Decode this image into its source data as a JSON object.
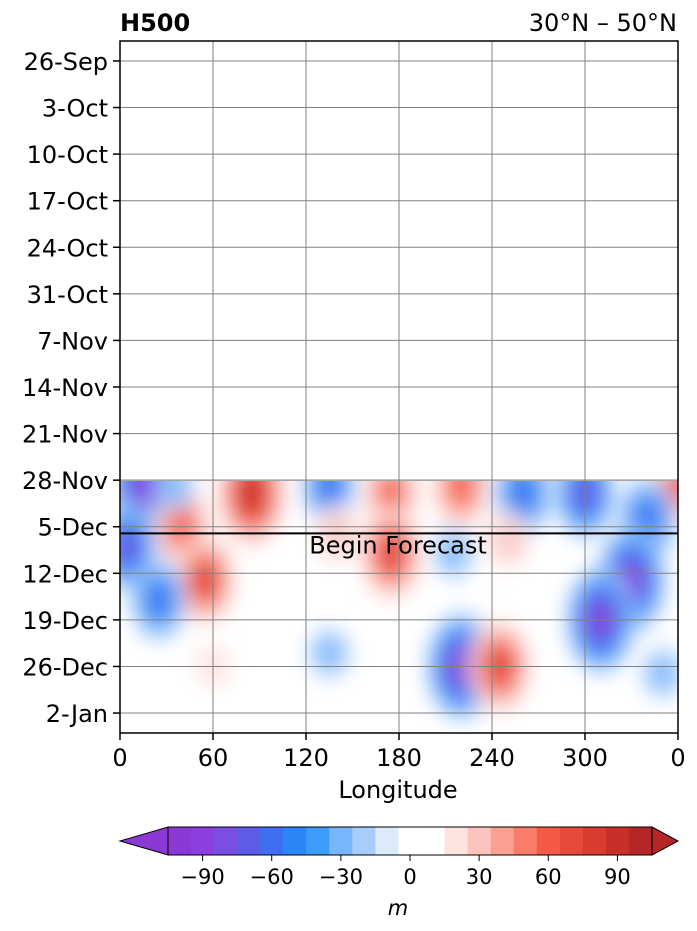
{
  "chart_data": {
    "type": "heatmap",
    "title": "H500",
    "subtitle": "30°N – 50°N",
    "xlabel": "Longitude",
    "ylabel": "",
    "x_ticks": [
      "0",
      "60",
      "120",
      "180",
      "240",
      "300",
      "0"
    ],
    "x_tick_values": [
      0,
      60,
      120,
      180,
      240,
      300,
      360
    ],
    "xlim": [
      0,
      360
    ],
    "y_ticks": [
      "26-Sep",
      "3-Oct",
      "10-Oct",
      "17-Oct",
      "24-Oct",
      "31-Oct",
      "7-Nov",
      "14-Nov",
      "21-Nov",
      "28-Nov",
      "5-Dec",
      "12-Dec",
      "19-Dec",
      "26-Dec",
      "2-Jan"
    ],
    "ylim": [
      "2025-09-23",
      "2026-01-05"
    ],
    "data_start": "2025-11-28",
    "forecast_start": "2025-12-06",
    "annotation": "Begin Forecast",
    "grid": true,
    "colorbar": {
      "label": "m",
      "ticks": [
        "−90",
        "−60",
        "−30",
        "0",
        "30",
        "60",
        "90"
      ],
      "tick_values": [
        -90,
        -60,
        -30,
        0,
        30,
        60,
        90
      ],
      "levels": [
        -105,
        -95,
        -85,
        -75,
        -65,
        -55,
        -45,
        -35,
        -25,
        -15,
        -5,
        5,
        15,
        25,
        35,
        45,
        55,
        65,
        75,
        85,
        95,
        105
      ],
      "extend": "both",
      "colors": [
        "#8b39d4",
        "#8c3fdd",
        "#7a4fe0",
        "#5c5ce6",
        "#3f6ff0",
        "#2b86f7",
        "#3d9bfa",
        "#78b6fb",
        "#a9cdfb",
        "#dcebfc",
        "#ffffff",
        "#ffffff",
        "#fde2e0",
        "#fcc4bd",
        "#fba193",
        "#f97b69",
        "#f35b48",
        "#e54a3a",
        "#d93b31",
        "#c63029",
        "#b52727"
      ],
      "under_color": "#8b39d4",
      "over_color": "#b52727"
    },
    "anomaly_centers": [
      {
        "lon": 15,
        "date": "2025-11-29",
        "value": -90
      },
      {
        "lon": 85,
        "date": "2025-11-30",
        "value": 95
      },
      {
        "lon": 40,
        "date": "2025-12-05",
        "value": 70
      },
      {
        "lon": 175,
        "date": "2025-11-30",
        "value": 65
      },
      {
        "lon": 220,
        "date": "2025-11-29",
        "value": 70
      },
      {
        "lon": 360,
        "date": "2025-11-29",
        "value": 60
      },
      {
        "lon": 35,
        "date": "2025-11-29",
        "value": -30
      },
      {
        "lon": 135,
        "date": "2025-11-29",
        "value": -60
      },
      {
        "lon": 260,
        "date": "2025-11-30",
        "value": -70
      },
      {
        "lon": 300,
        "date": "2025-11-30",
        "value": -75
      },
      {
        "lon": 340,
        "date": "2025-12-04",
        "value": -70
      },
      {
        "lon": 5,
        "date": "2025-12-08",
        "value": -75
      },
      {
        "lon": 175,
        "date": "2025-12-09",
        "value": 80
      },
      {
        "lon": 140,
        "date": "2025-12-06",
        "value": 40
      },
      {
        "lon": 55,
        "date": "2025-12-13",
        "value": 75
      },
      {
        "lon": 25,
        "date": "2025-12-16",
        "value": -65
      },
      {
        "lon": 250,
        "date": "2025-12-07",
        "value": 40
      },
      {
        "lon": 215,
        "date": "2025-12-09",
        "value": -30
      },
      {
        "lon": 330,
        "date": "2025-12-13",
        "value": -95
      },
      {
        "lon": 310,
        "date": "2025-12-19",
        "value": -95
      },
      {
        "lon": 220,
        "date": "2025-12-26",
        "value": -95
      },
      {
        "lon": 245,
        "date": "2025-12-26",
        "value": 80
      },
      {
        "lon": 135,
        "date": "2025-12-24",
        "value": -30
      },
      {
        "lon": 60,
        "date": "2025-12-26",
        "value": 20
      },
      {
        "lon": 350,
        "date": "2025-12-27",
        "value": -30
      }
    ]
  }
}
